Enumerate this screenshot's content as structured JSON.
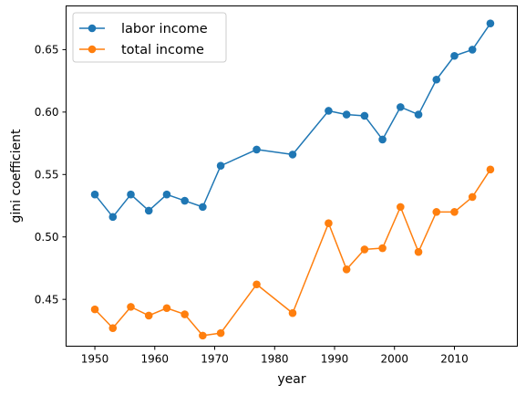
{
  "chart_data": {
    "type": "line",
    "xlabel": "year",
    "ylabel": "gini coefficient",
    "xlim": [
      1945.2,
      2020.5
    ],
    "ylim": [
      0.4125,
      0.685
    ],
    "x_ticks": [
      1950,
      1960,
      1970,
      1980,
      1990,
      2000,
      2010
    ],
    "x_tick_labels": [
      "1950",
      "1960",
      "1970",
      "1980",
      "1990",
      "2000",
      "2010"
    ],
    "y_ticks": [
      0.45,
      0.5,
      0.55,
      0.6,
      0.65
    ],
    "y_tick_labels": [
      "0.45",
      "0.50",
      "0.55",
      "0.60",
      "0.65"
    ],
    "grid": false,
    "legend_position": "upper-left",
    "x": [
      1950,
      1953,
      1956,
      1959,
      1962,
      1965,
      1968,
      1971,
      1977,
      1983,
      1989,
      1992,
      1995,
      1998,
      2001,
      2004,
      2007,
      2010,
      2013,
      2016
    ],
    "series": [
      {
        "name": "labor income",
        "color": "#1f77b4",
        "values": [
          0.534,
          0.516,
          0.534,
          0.521,
          0.534,
          0.529,
          0.524,
          0.557,
          0.57,
          0.566,
          0.601,
          0.598,
          0.597,
          0.578,
          0.604,
          0.598,
          0.626,
          0.645,
          0.65,
          0.671
        ]
      },
      {
        "name": "total income",
        "color": "#ff7f0e",
        "values": [
          0.442,
          0.427,
          0.444,
          0.437,
          0.443,
          0.438,
          0.421,
          0.423,
          0.462,
          0.439,
          0.511,
          0.474,
          0.49,
          0.491,
          0.524,
          0.488,
          0.52,
          0.52,
          0.532,
          0.554
        ]
      }
    ]
  }
}
